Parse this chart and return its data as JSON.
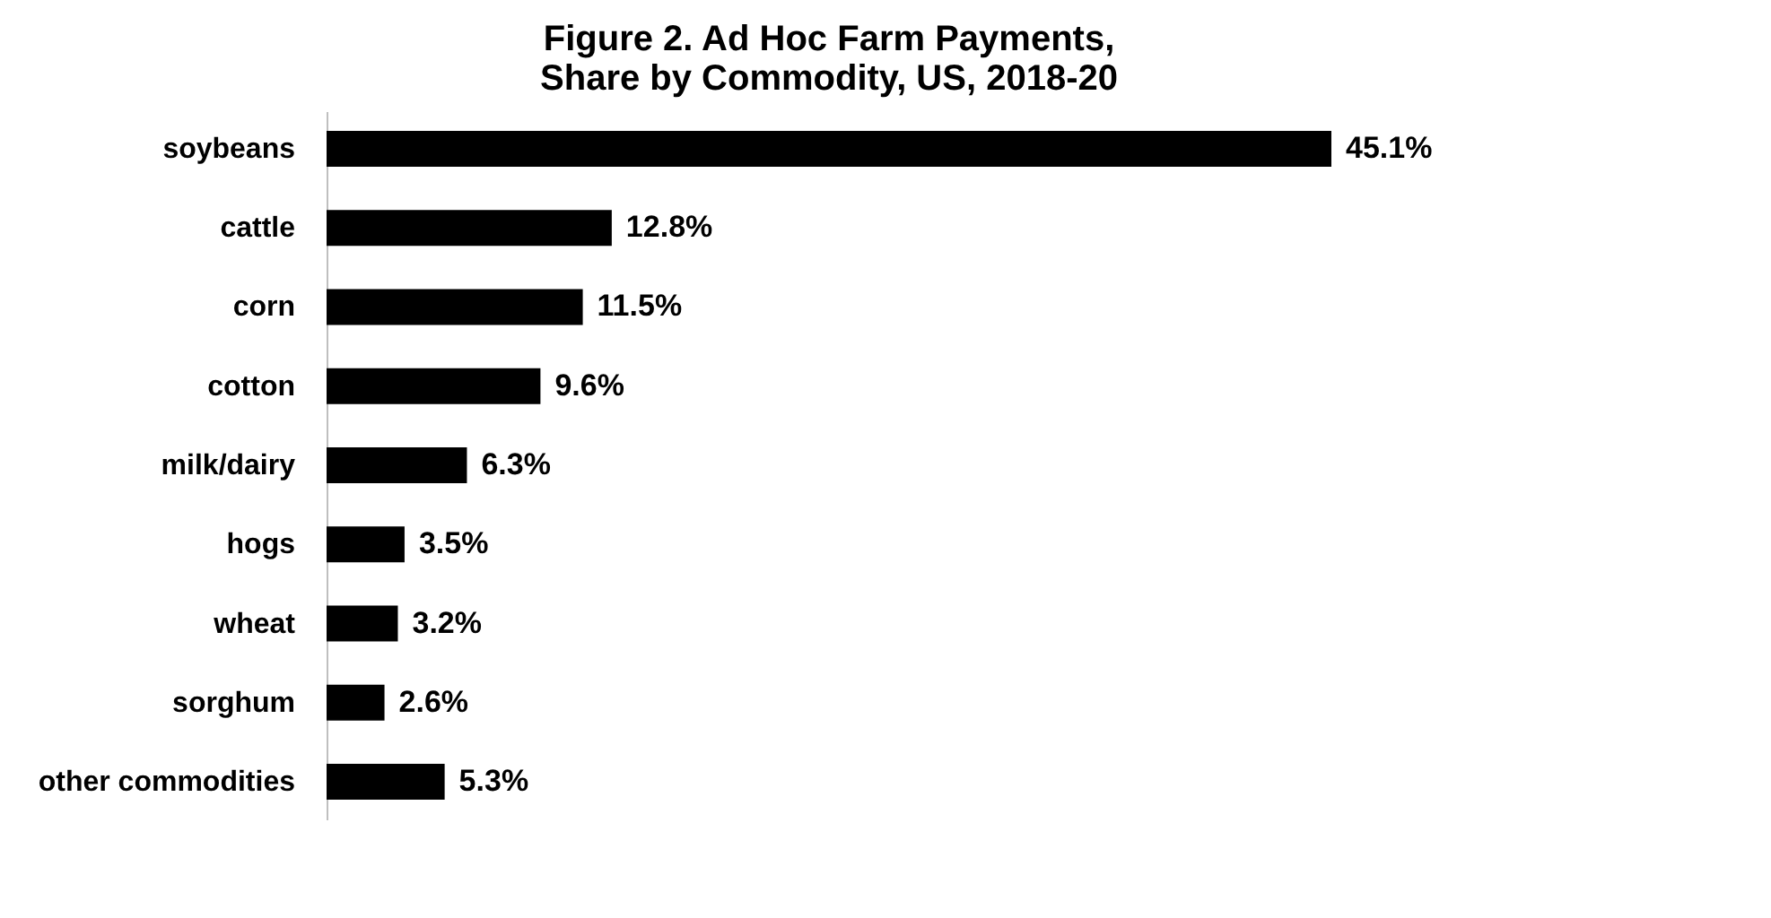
{
  "chart_data": {
    "type": "bar",
    "orientation": "horizontal",
    "title": "Figure 2. Ad Hoc Farm Payments, Share by Commodity, US, 2018-20",
    "categories": [
      "soybeans",
      "cattle",
      "corn",
      "cotton",
      "milk/dairy",
      "hogs",
      "wheat",
      "sorghum",
      "other commodities"
    ],
    "values": [
      45.1,
      12.8,
      11.5,
      9.6,
      6.3,
      3.5,
      3.2,
      2.6,
      5.3
    ],
    "value_labels": [
      "45.1%",
      "12.8%",
      "11.5%",
      "9.6%",
      "6.3%",
      "3.5%",
      "3.2%",
      "2.6%",
      "5.3%"
    ],
    "color": "#000000",
    "tick_labels": "y"
  }
}
